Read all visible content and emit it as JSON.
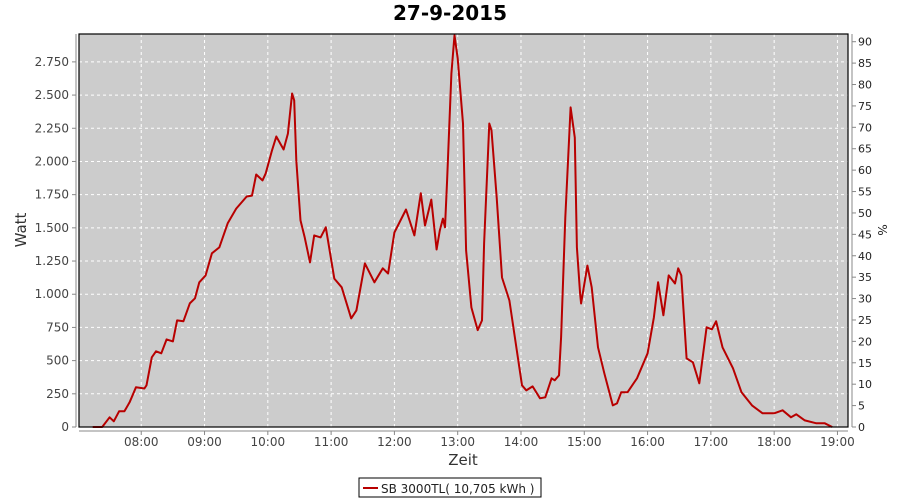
{
  "chart_data": {
    "type": "line",
    "title": "27-9-2015",
    "xlabel": "Zeit",
    "ylabel": "Watt",
    "y2label": "%",
    "xlim": [
      "07:01",
      "19:10"
    ],
    "ylim": [
      0,
      2960
    ],
    "y2lim": [
      0,
      91.8
    ],
    "grid": true,
    "legend_position": "bottom",
    "x_ticks": [
      "08:00",
      "09:00",
      "10:00",
      "11:00",
      "12:00",
      "13:00",
      "14:00",
      "15:00",
      "16:00",
      "17:00",
      "18:00",
      "19:00"
    ],
    "y_ticks": [
      {
        "value": 0,
        "label": "0"
      },
      {
        "value": 250,
        "label": "250"
      },
      {
        "value": 500,
        "label": "500"
      },
      {
        "value": 750,
        "label": "750"
      },
      {
        "value": 1000,
        "label": "1.000"
      },
      {
        "value": 1250,
        "label": "1.250"
      },
      {
        "value": 1500,
        "label": "1.500"
      },
      {
        "value": 1750,
        "label": "1.750"
      },
      {
        "value": 2000,
        "label": "2.000"
      },
      {
        "value": 2250,
        "label": "2.250"
      },
      {
        "value": 2500,
        "label": "2.500"
      },
      {
        "value": 2750,
        "label": "2.750"
      }
    ],
    "y2_ticks": [
      "0",
      "5",
      "10",
      "15",
      "20",
      "25",
      "30",
      "35",
      "40",
      "45",
      "50",
      "55",
      "60",
      "65",
      "70",
      "75",
      "80",
      "85",
      "90"
    ],
    "colors": {
      "series": "#b80000",
      "plot_background": "#cccccc",
      "grid": "#ffffff"
    },
    "series": [
      {
        "name": "SB 3000TL( 10,705 kWh )",
        "points": [
          [
            "07:14",
            0
          ],
          [
            "07:23",
            0
          ],
          [
            "07:30",
            73
          ],
          [
            "07:34",
            43
          ],
          [
            "07:39",
            118
          ],
          [
            "07:44",
            118
          ],
          [
            "07:49",
            186
          ],
          [
            "07:55",
            300
          ],
          [
            "08:03",
            290
          ],
          [
            "08:05",
            314
          ],
          [
            "08:10",
            525
          ],
          [
            "08:14",
            570
          ],
          [
            "08:19",
            555
          ],
          [
            "08:24",
            660
          ],
          [
            "08:30",
            645
          ],
          [
            "08:34",
            803
          ],
          [
            "08:40",
            796
          ],
          [
            "08:46",
            931
          ],
          [
            "08:51",
            969
          ],
          [
            "08:55",
            1090
          ],
          [
            "09:01",
            1142
          ],
          [
            "09:07",
            1308
          ],
          [
            "09:14",
            1353
          ],
          [
            "09:22",
            1534
          ],
          [
            "09:30",
            1645
          ],
          [
            "09:40",
            1736
          ],
          [
            "09:45",
            1743
          ],
          [
            "09:49",
            1902
          ],
          [
            "09:55",
            1857
          ],
          [
            "09:58",
            1910
          ],
          [
            "10:04",
            2083
          ],
          [
            "10:08",
            2188
          ],
          [
            "10:15",
            2090
          ],
          [
            "10:19",
            2210
          ],
          [
            "10:23",
            2512
          ],
          [
            "10:25",
            2460
          ],
          [
            "10:27",
            2008
          ],
          [
            "10:31",
            1556
          ],
          [
            "10:35",
            1428
          ],
          [
            "10:40",
            1240
          ],
          [
            "10:44",
            1443
          ],
          [
            "10:50",
            1428
          ],
          [
            "10:55",
            1504
          ],
          [
            "11:03",
            1118
          ],
          [
            "11:10",
            1052
          ],
          [
            "11:19",
            818
          ],
          [
            "11:24",
            878
          ],
          [
            "11:32",
            1232
          ],
          [
            "11:41",
            1090
          ],
          [
            "11:49",
            1195
          ],
          [
            "11:54",
            1156
          ],
          [
            "12:00",
            1465
          ],
          [
            "12:11",
            1638
          ],
          [
            "12:19",
            1443
          ],
          [
            "12:25",
            1760
          ],
          [
            "12:29",
            1518
          ],
          [
            "12:35",
            1713
          ],
          [
            "12:40",
            1337
          ],
          [
            "12:43",
            1480
          ],
          [
            "12:46",
            1570
          ],
          [
            "12:48",
            1504
          ],
          [
            "12:50",
            1857
          ],
          [
            "12:54",
            2663
          ],
          [
            "12:57",
            2950
          ],
          [
            "13:00",
            2776
          ],
          [
            "13:05",
            2286
          ],
          [
            "13:08",
            1330
          ],
          [
            "13:13",
            900
          ],
          [
            "13:19",
            730
          ],
          [
            "13:23",
            803
          ],
          [
            "13:25",
            1382
          ],
          [
            "13:30",
            2286
          ],
          [
            "13:32",
            2234
          ],
          [
            "13:37",
            1728
          ],
          [
            "13:42",
            1126
          ],
          [
            "13:49",
            953
          ],
          [
            "13:56",
            577
          ],
          [
            "14:01",
            314
          ],
          [
            "14:05",
            276
          ],
          [
            "14:11",
            306
          ],
          [
            "14:18",
            216
          ],
          [
            "14:23",
            224
          ],
          [
            "14:29",
            367
          ],
          [
            "14:32",
            352
          ],
          [
            "14:36",
            389
          ],
          [
            "14:38",
            676
          ],
          [
            "14:42",
            1578
          ],
          [
            "14:47",
            2407
          ],
          [
            "14:51",
            2180
          ],
          [
            "14:53",
            1353
          ],
          [
            "14:56",
            1005
          ],
          [
            "14:57",
            930
          ],
          [
            "15:03",
            1216
          ],
          [
            "15:07",
            1052
          ],
          [
            "15:13",
            600
          ],
          [
            "15:19",
            405
          ],
          [
            "15:27",
            163
          ],
          [
            "15:31",
            178
          ],
          [
            "15:35",
            261
          ],
          [
            "15:41",
            261
          ],
          [
            "15:50",
            367
          ],
          [
            "16:00",
            555
          ],
          [
            "16:06",
            826
          ],
          [
            "16:10",
            1090
          ],
          [
            "16:15",
            841
          ],
          [
            "16:20",
            1142
          ],
          [
            "16:26",
            1081
          ],
          [
            "16:29",
            1195
          ],
          [
            "16:32",
            1142
          ],
          [
            "16:37",
            517
          ],
          [
            "16:43",
            487
          ],
          [
            "16:49",
            329
          ],
          [
            "16:56",
            751
          ],
          [
            "17:01",
            736
          ],
          [
            "17:05",
            796
          ],
          [
            "17:11",
            600
          ],
          [
            "17:21",
            442
          ],
          [
            "17:29",
            261
          ],
          [
            "17:39",
            163
          ],
          [
            "17:49",
            103
          ],
          [
            "18:00",
            103
          ],
          [
            "18:08",
            126
          ],
          [
            "18:16",
            73
          ],
          [
            "18:21",
            96
          ],
          [
            "18:29",
            50
          ],
          [
            "18:40",
            28
          ],
          [
            "18:48",
            28
          ],
          [
            "18:55",
            0
          ]
        ]
      }
    ]
  }
}
